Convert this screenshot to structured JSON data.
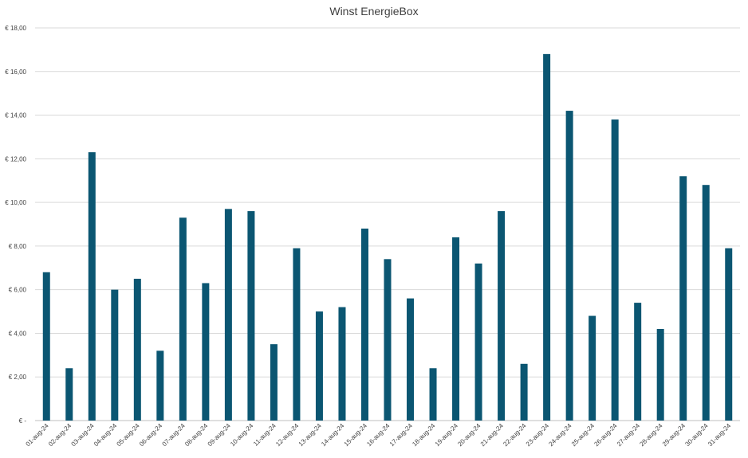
{
  "chart_data": {
    "type": "bar",
    "title": "Winst EnergieBox",
    "xlabel": "",
    "ylabel": "",
    "ylim": [
      0,
      18
    ],
    "y_ticks": [
      0,
      2,
      4,
      6,
      8,
      10,
      12,
      14,
      16,
      18
    ],
    "y_tick_labels": [
      "€ -",
      "€ 2,00",
      "€ 4,00",
      "€ 6,00",
      "€ 8,00",
      "€ 10,00",
      "€ 12,00",
      "€ 14,00",
      "€ 16,00",
      "€ 18,00"
    ],
    "grid": true,
    "bar_color": "#0b5672",
    "categories": [
      "01-aug-24",
      "02-aug-24",
      "03-aug-24",
      "04-aug-24",
      "05-aug-24",
      "06-aug-24",
      "07-aug-24",
      "08-aug-24",
      "09-aug-24",
      "10-aug-24",
      "11-aug-24",
      "12-aug-24",
      "13-aug-24",
      "14-aug-24",
      "15-aug-24",
      "16-aug-24",
      "17-aug-24",
      "18-aug-24",
      "19-aug-24",
      "20-aug-24",
      "21-aug-24",
      "22-aug-24",
      "23-aug-24",
      "24-aug-24",
      "25-aug-24",
      "26-aug-24",
      "27-aug-24",
      "28-aug-24",
      "29-aug-24",
      "30-aug-24",
      "31-aug-24"
    ],
    "values": [
      6.8,
      2.4,
      12.3,
      6.0,
      6.5,
      3.2,
      9.3,
      6.3,
      9.7,
      9.6,
      3.5,
      7.9,
      5.0,
      5.2,
      8.8,
      7.4,
      5.6,
      2.4,
      8.4,
      7.2,
      9.6,
      2.6,
      16.8,
      14.2,
      4.8,
      13.8,
      5.4,
      4.2,
      11.2,
      10.8,
      7.9
    ]
  }
}
